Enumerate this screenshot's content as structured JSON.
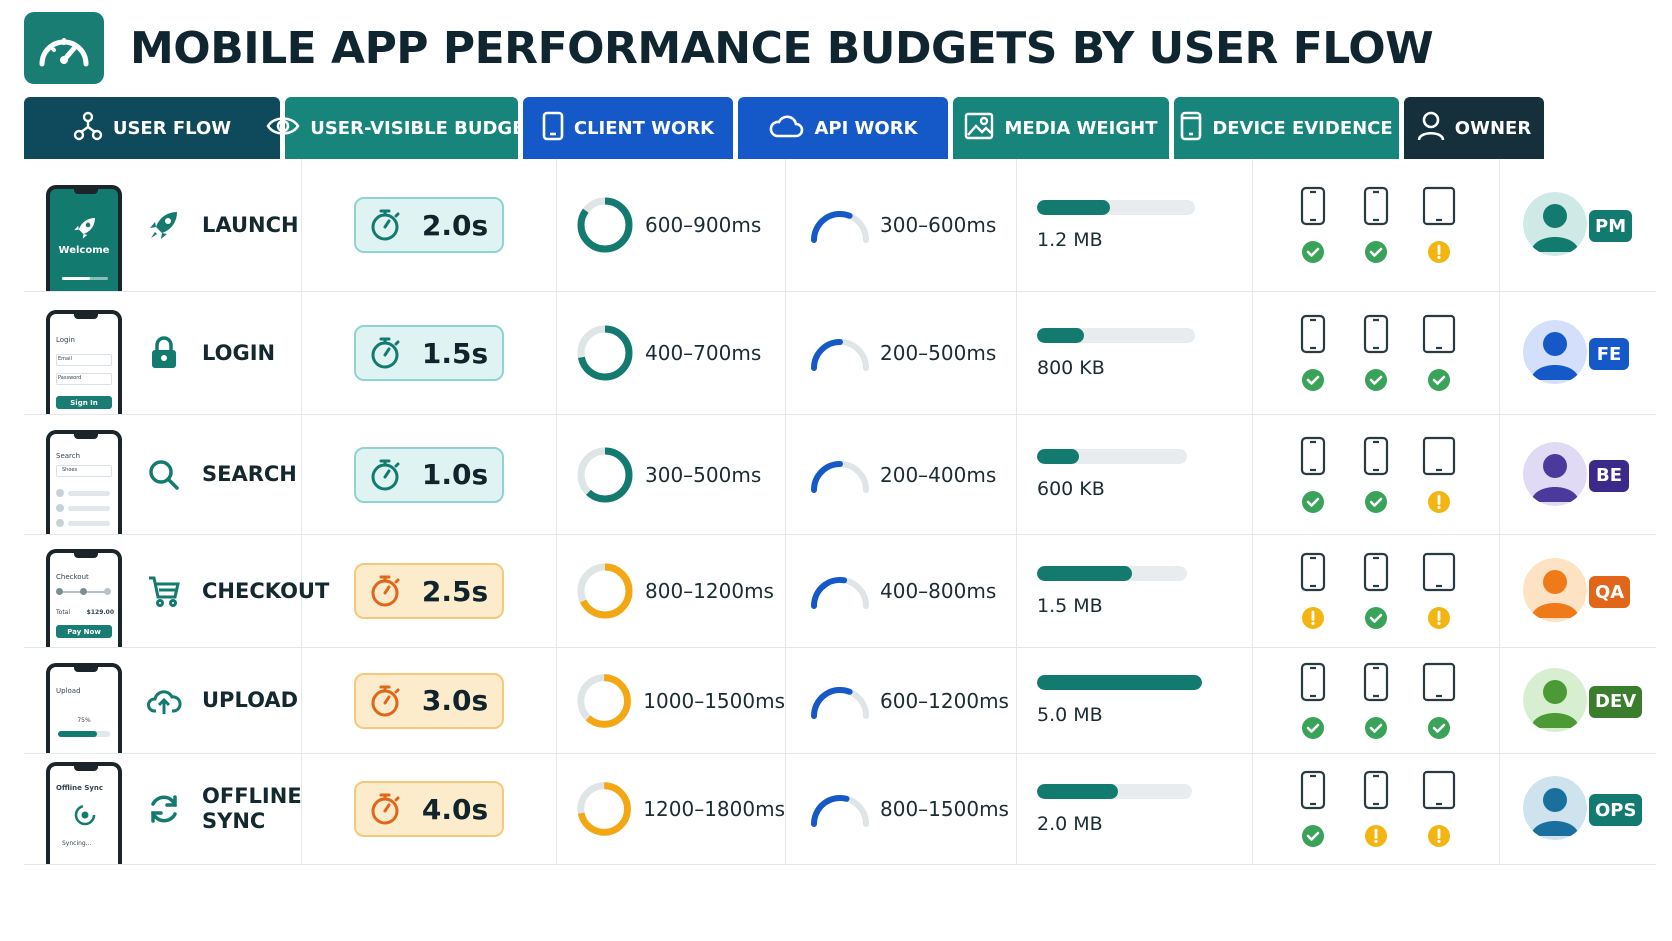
{
  "title": "MOBILE APP PERFORMANCE BUDGETS BY USER FLOW",
  "logo_icon": "speedometer-icon",
  "columns": [
    {
      "label": "USER FLOW",
      "icon": "flow-diagram-icon",
      "color": "#0e4a5b",
      "width": 256
    },
    {
      "label": "USER-VISIBLE BUDGET",
      "icon": "eye-icon",
      "color": "#17857b",
      "width": 233
    },
    {
      "label": "CLIENT WORK",
      "icon": "mobile-icon",
      "color": "#1559c8",
      "width": 210
    },
    {
      "label": "API WORK",
      "icon": "cloud-icon",
      "color": "#1559c8",
      "width": 210
    },
    {
      "label": "MEDIA WEIGHT",
      "icon": "image-icon",
      "color": "#17857b",
      "width": 216
    },
    {
      "label": "DEVICE EVIDENCE",
      "icon": "device-icon",
      "color": "#17857b",
      "width": 225
    },
    {
      "label": "OWNER",
      "icon": "user-icon",
      "color": "#15303b",
      "width": 140
    }
  ],
  "rows": [
    {
      "flow": "LAUNCH",
      "icon": "rocket-icon",
      "screen": "launch",
      "screen_text": {
        "t1": "Welcome"
      },
      "budget": "2.0s",
      "tier": "teal",
      "client": "600–900ms",
      "client_color": "#137a70",
      "client_pct": 0.85,
      "api": "300–600ms",
      "api_pct": 0.62,
      "media": "1.2 MB",
      "media_pct": 0.46,
      "media_track": 0.9,
      "devices": [
        "ok",
        "ok",
        "warn"
      ],
      "owner": "PM",
      "owner_color": "#137a70",
      "avatar_bg": "#cfeae6",
      "avatar_fg": "#137a70"
    },
    {
      "flow": "LOGIN",
      "icon": "lock-icon",
      "screen": "login",
      "screen_text": {
        "t1": "Login",
        "t2": "Email",
        "t3": "Password",
        "t4": "Sign In"
      },
      "budget": "1.5s",
      "tier": "teal",
      "client": "400–700ms",
      "client_color": "#137a70",
      "client_pct": 0.72,
      "api": "200–500ms",
      "api_pct": 0.5,
      "media": "800 KB",
      "media_pct": 0.3,
      "media_track": 0.9,
      "devices": [
        "ok",
        "ok",
        "ok"
      ],
      "owner": "FE",
      "owner_color": "#1559c8",
      "avatar_bg": "#d4e0fb",
      "avatar_fg": "#1559c8"
    },
    {
      "flow": "SEARCH",
      "icon": "search-icon",
      "screen": "search",
      "screen_text": {
        "t1": "Search",
        "t2": "Shoes"
      },
      "budget": "1.0s",
      "tier": "teal",
      "client": "300–500ms",
      "client_color": "#137a70",
      "client_pct": 0.62,
      "api": "200–400ms",
      "api_pct": 0.5,
      "media": "600 KB",
      "media_pct": 0.28,
      "media_track": 0.85,
      "devices": [
        "ok",
        "ok",
        "warn"
      ],
      "owner": "BE",
      "owner_color": "#3b2a8a",
      "avatar_bg": "#e0daf4",
      "avatar_fg": "#4b3a9c"
    },
    {
      "flow": "CHECKOUT",
      "icon": "cart-icon",
      "screen": "checkout",
      "screen_text": {
        "t1": "Checkout",
        "t2": "Total",
        "t3": "$129.00",
        "t4": "Pay Now"
      },
      "budget": "2.5s",
      "tier": "amber",
      "client": "800–1200ms",
      "client_color": "#f3a712",
      "client_pct": 0.68,
      "api": "400–800ms",
      "api_pct": 0.55,
      "media": "1.5 MB",
      "media_pct": 0.63,
      "media_track": 0.85,
      "devices": [
        "warn",
        "ok",
        "warn"
      ],
      "owner": "QA",
      "owner_color": "#e0661a",
      "avatar_bg": "#fde2c4",
      "avatar_fg": "#ef7a1a"
    },
    {
      "flow": "UPLOAD",
      "icon": "cloud-upload-icon",
      "screen": "upload",
      "screen_text": {
        "t1": "Upload",
        "t2": "75%"
      },
      "budget": "3.0s",
      "tier": "amber",
      "client": "1000–1500ms",
      "client_color": "#f3a712",
      "client_pct": 0.62,
      "api": "600–1200ms",
      "api_pct": 0.62,
      "media": "5.0 MB",
      "media_pct": 1.0,
      "media_track": 0.94,
      "devices": [
        "ok",
        "ok",
        "ok"
      ],
      "owner": "DEV",
      "owner_color": "#3a7d2c",
      "avatar_bg": "#d8eed1",
      "avatar_fg": "#4b9a35"
    },
    {
      "flow": "OFFLINE\nSYNC",
      "icon": "sync-icon",
      "screen": "sync",
      "screen_text": {
        "t1": "Offline Sync",
        "t2": "Syncing..."
      },
      "budget": "4.0s",
      "tier": "amber",
      "client": "1200–1800ms",
      "client_color": "#f3a712",
      "client_pct": 0.72,
      "api": "800–1500ms",
      "api_pct": 0.58,
      "media": "2.0 MB",
      "media_pct": 0.52,
      "media_track": 0.88,
      "devices": [
        "ok",
        "warn",
        "warn"
      ],
      "owner": "OPS",
      "owner_color": "#137a70",
      "avatar_bg": "#cfe3ee",
      "avatar_fg": "#1b6f9e"
    }
  ]
}
